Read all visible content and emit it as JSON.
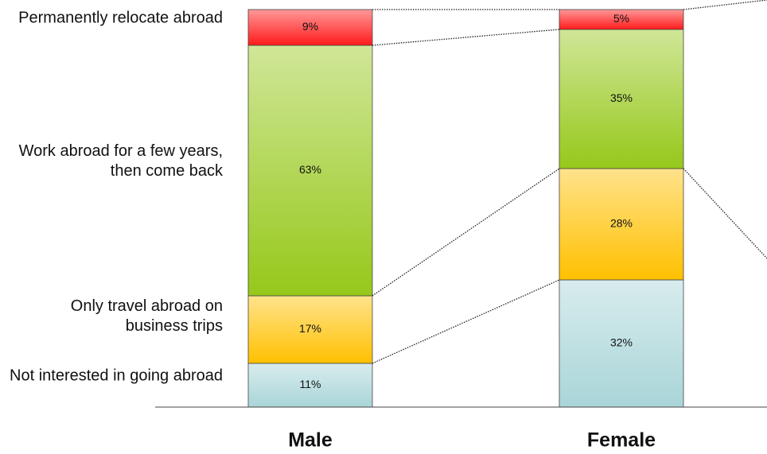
{
  "chart_data": {
    "type": "bar",
    "stacked": true,
    "categories": [
      "Male",
      "Female"
    ],
    "series": [
      {
        "name": "Not interested in going abroad",
        "color": "#a9d5d8",
        "values": [
          11,
          32
        ],
        "value_labels": [
          "11%",
          "32%"
        ]
      },
      {
        "name": "Only travel abroad on business trips",
        "color": "#ffc000",
        "values": [
          17,
          28
        ],
        "value_labels": [
          "17%",
          "28%"
        ]
      },
      {
        "name": "Work abroad for a few years, then come back",
        "color": "#96c81a",
        "values": [
          63,
          35
        ],
        "value_labels": [
          "63%",
          "35%"
        ]
      },
      {
        "name": "Permanently relocate abroad",
        "color": "#ff1a1a",
        "values": [
          9,
          5
        ],
        "value_labels": [
          "9%",
          "5%"
        ]
      }
    ],
    "ylim": [
      0,
      100
    ]
  }
}
